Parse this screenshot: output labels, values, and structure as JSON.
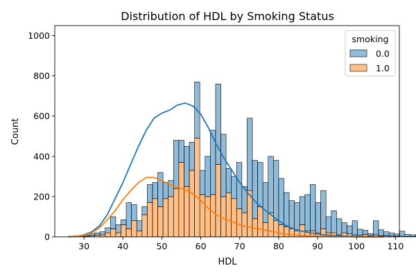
{
  "chart_data": {
    "type": "bar",
    "title": "Distribution of HDL by Smoking Status",
    "xlabel": "HDL",
    "ylabel": "Count",
    "xlim": [
      22.5,
      111
    ],
    "ylim": [
      0,
      1050
    ],
    "xticks": [
      30,
      40,
      50,
      60,
      70,
      80,
      90,
      100,
      110
    ],
    "yticks": [
      0,
      200,
      400,
      600,
      800,
      1000
    ],
    "bin_start": 26,
    "bin_width": 1.35,
    "grid": false,
    "stacked": true,
    "legend": {
      "title": "smoking",
      "placement": "top-right"
    },
    "series": [
      {
        "name": "0.0",
        "color": "#1f77b4",
        "values": [
          2,
          3,
          3,
          5,
          10,
          12,
          15,
          25,
          60,
          40,
          25,
          130,
          80,
          50,
          40,
          90,
          80,
          170,
          80,
          80,
          240,
          110,
          200,
          140,
          280,
          120,
          200,
          320,
          400,
          310,
          120,
          110,
          230,
          130,
          360,
          290,
          220,
          200,
          280,
          300,
          230,
          170,
          140,
          140,
          140,
          180,
          230,
          150,
          190,
          80,
          110,
          80,
          50,
          40,
          70,
          30,
          20,
          10,
          70,
          30,
          20,
          15,
          10,
          25,
          10,
          8,
          8,
          5,
          4,
          3,
          2,
          2,
          2,
          1,
          1,
          1,
          1,
          1,
          1,
          1
        ]
      },
      {
        "name": "1.0",
        "color": "#ff7f0e",
        "values": [
          1,
          2,
          2,
          3,
          5,
          8,
          10,
          20,
          40,
          20,
          60,
          40,
          80,
          30,
          110,
          170,
          190,
          150,
          190,
          200,
          240,
          370,
          250,
          330,
          490,
          210,
          200,
          210,
          360,
          200,
          220,
          190,
          140,
          120,
          230,
          90,
          150,
          70,
          120,
          80,
          60,
          50,
          40,
          30,
          60,
          30,
          30,
          20,
          40,
          20,
          20,
          10,
          20,
          15,
          10,
          8,
          12,
          6,
          10,
          5,
          5,
          4,
          4,
          3,
          2,
          2,
          2,
          2,
          1,
          1,
          1,
          1,
          1,
          1,
          1,
          1,
          1,
          0,
          0,
          0
        ]
      }
    ],
    "kde": [
      {
        "name": "0.0",
        "x": [
          26,
          28,
          30,
          32,
          34,
          36,
          38,
          40,
          42,
          44,
          46,
          48,
          50,
          52,
          54,
          56,
          58,
          60,
          62,
          64,
          66,
          68,
          70,
          72,
          74,
          76,
          78,
          80,
          82,
          84,
          86,
          88,
          90,
          92,
          94,
          96,
          98,
          100,
          102,
          104,
          107
        ],
        "y": [
          1,
          3,
          10,
          25,
          55,
          110,
          190,
          270,
          360,
          450,
          530,
          590,
          615,
          630,
          655,
          665,
          650,
          610,
          540,
          460,
          390,
          330,
          270,
          220,
          175,
          140,
          110,
          80,
          55,
          38,
          28,
          20,
          14,
          9,
          6,
          4,
          3,
          2,
          1,
          1,
          0
        ]
      },
      {
        "name": "1.0",
        "x": [
          26,
          28,
          30,
          32,
          34,
          36,
          38,
          40,
          42,
          44,
          46,
          48,
          50,
          52,
          54,
          56,
          58,
          60,
          62,
          64,
          66,
          68,
          70,
          72,
          74,
          76,
          78,
          80,
          82,
          84,
          86,
          88,
          90,
          92,
          94,
          96,
          98,
          100,
          102,
          104,
          107
        ],
        "y": [
          0,
          2,
          8,
          20,
          45,
          85,
          130,
          185,
          230,
          270,
          295,
          295,
          280,
          260,
          245,
          235,
          215,
          180,
          140,
          110,
          90,
          75,
          60,
          50,
          42,
          35,
          28,
          20,
          13,
          9,
          6,
          4,
          3,
          2,
          1,
          1,
          1,
          0,
          0,
          0,
          0
        ]
      }
    ]
  }
}
